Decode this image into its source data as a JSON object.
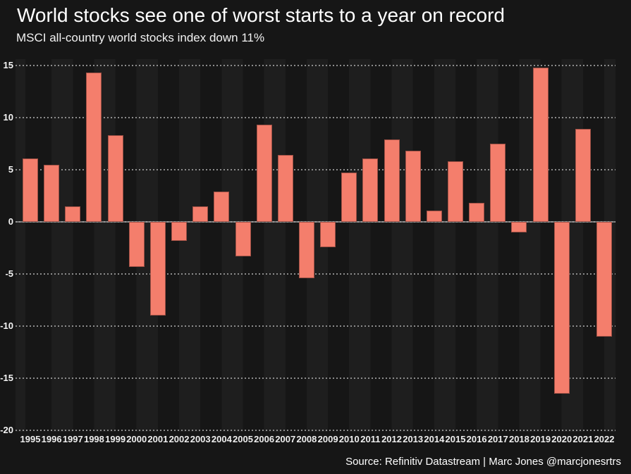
{
  "header": {
    "title": "World stocks see one of worst starts to a year on record",
    "subtitle": "MSCI all-country world stocks index down 11%"
  },
  "footer": {
    "source": "Source: Refinitiv Datastream | Marc Jones @marcjonesrtrs"
  },
  "colors": {
    "background": "#161616",
    "stripe_light": "#1e1e1e",
    "stripe_dark": "#161616",
    "bar_fill": "#f47e6c",
    "bar_border": "#9e5045",
    "grid_dots": "#a0a0a0",
    "zero_line": "#7a7a7a",
    "text": "#ffffff"
  },
  "chart_data": {
    "type": "bar",
    "title": "World stocks see one of worst starts to a year on record",
    "subtitle": "MSCI all-country world stocks index down 11%",
    "xlabel": "",
    "ylabel": "",
    "categories": [
      "1995",
      "1996",
      "1997",
      "1998",
      "1999",
      "2000",
      "2001",
      "2002",
      "2003",
      "2004",
      "2005",
      "2006",
      "2007",
      "2008",
      "2009",
      "2010",
      "2011",
      "2012",
      "2013",
      "2014",
      "2015",
      "2016",
      "2017",
      "2018",
      "2019",
      "2020",
      "2021",
      "2022"
    ],
    "values": [
      6.1,
      5.5,
      1.5,
      14.3,
      8.3,
      -4.3,
      -9.0,
      -1.8,
      1.5,
      2.9,
      -3.3,
      9.3,
      6.4,
      -5.4,
      -2.4,
      4.7,
      6.1,
      7.9,
      6.8,
      1.1,
      5.8,
      1.8,
      7.5,
      -1.0,
      14.8,
      -16.5,
      8.9,
      -11.0
    ],
    "ylim": [
      -20,
      15
    ],
    "yticks": [
      15,
      10,
      5,
      0,
      -5,
      -10,
      -15,
      -20
    ],
    "grid": "horizontal-dotted",
    "legend": "none",
    "bar_color": "#f47e6c"
  }
}
